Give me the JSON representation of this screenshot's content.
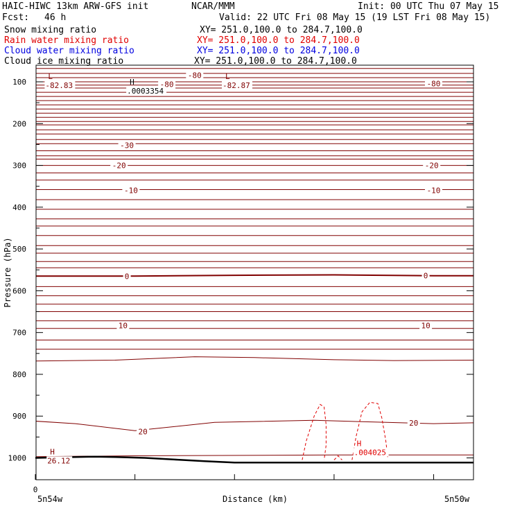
{
  "header": {
    "title": "HAIC-HIWC 13km ARW-GFS init",
    "org": "NCAR/MMM",
    "init": "Init: 00 UTC Thu 07 May 15",
    "fcst_label": "Fcst:",
    "fcst_value": "46 h",
    "valid": "Valid: 22 UTC Fri 08 May 15 (19 LST Fri 08 May 15)"
  },
  "fields": [
    {
      "name": "Snow mixing ratio",
      "xy": "XY= 251.0,100.0 to 284.7,100.0",
      "color": "#000000"
    },
    {
      "name": "Rain water mixing ratio",
      "xy": "XY= 251.0,100.0 to 284.7,100.0",
      "color": "#e00000"
    },
    {
      "name": "Cloud water mixing ratio",
      "xy": "XY= 251.0,100.0 to 284.7,100.0",
      "color": "#0000e0"
    },
    {
      "name": "Cloud ice mixing ratio",
      "xy": "XY= 251.0,100.0 to 284.7,100.0",
      "color": "#000000"
    }
  ],
  "chart_data": {
    "type": "line",
    "xlabel": "Distance (km)",
    "ylabel": "Pressure (hPa)",
    "xlim": [
      0,
      220
    ],
    "x_ticks": [
      0,
      50,
      100,
      150,
      200
    ],
    "x_tick_labels": [
      "0"
    ],
    "x_left_label": "5n54w",
    "x_right_label": "5n50w",
    "ylim": [
      1040,
      65
    ],
    "y_ticks": [
      100,
      200,
      300,
      400,
      500,
      600,
      700,
      800,
      900,
      1000
    ],
    "temperature_contours": [
      {
        "pressures": [
          68,
          80,
          90,
          100,
          108,
          115,
          125,
          135,
          145,
          155,
          165,
          175,
          185,
          195,
          203,
          215,
          225,
          238,
          248,
          265,
          277,
          285,
          300,
          318,
          335,
          358,
          382,
          405,
          428,
          445,
          468,
          492,
          510,
          530,
          545,
          590,
          612,
          632,
          650,
          672,
          690,
          718,
          740
        ]
      },
      {
        "x": [
          0,
          40,
          80,
          110,
          150,
          180,
          220
        ],
        "p": [
          768,
          766,
          758,
          760,
          765,
          767,
          766
        ]
      },
      {
        "x": [
          0,
          20,
          50,
          90,
          140,
          200,
          220
        ],
        "p": [
          912,
          918,
          935,
          915,
          910,
          918,
          916
        ]
      },
      {
        "x": [
          0,
          50,
          150,
          220
        ],
        "p": [
          997,
          995,
          993,
          993
        ]
      }
    ],
    "freezing_level": {
      "x": [
        0,
        50,
        100,
        150,
        200,
        220
      ],
      "p": [
        565,
        565,
        563,
        562,
        564,
        564
      ]
    },
    "contour_labels": [
      {
        "text": "-80",
        "x": 80,
        "p": 84
      },
      {
        "text": "-80",
        "x": 66,
        "p": 106
      },
      {
        "text": "-80",
        "x": 200,
        "p": 104
      },
      {
        "text": "-30",
        "x": 46,
        "p": 252
      },
      {
        "text": "-20",
        "x": 42,
        "p": 300
      },
      {
        "text": "-20",
        "x": 199,
        "p": 300
      },
      {
        "text": "-10",
        "x": 48,
        "p": 360
      },
      {
        "text": "-10",
        "x": 200,
        "p": 360
      },
      {
        "text": "0",
        "x": 46,
        "p": 565
      },
      {
        "text": "0",
        "x": 196,
        "p": 564
      },
      {
        "text": "10",
        "x": 44,
        "p": 683
      },
      {
        "text": "10",
        "x": 196,
        "p": 683
      },
      {
        "text": "20",
        "x": 54,
        "p": 937
      },
      {
        "text": "20",
        "x": 190,
        "p": 916
      }
    ],
    "highs_lows": [
      {
        "mark": "L",
        "value": "-82.83",
        "x": 5,
        "p": 100
      },
      {
        "mark": "L",
        "value": "-82.87",
        "x": 94,
        "p": 100
      },
      {
        "mark": "H",
        "value": ".0003354",
        "x": 46,
        "p": 113
      },
      {
        "mark": "H",
        "value": "26.12",
        "x": 6,
        "p": 998
      },
      {
        "mark": "H",
        "value": ".004025",
        "x": 160,
        "p": 978
      }
    ],
    "rain_contours": [
      {
        "x": [
          134,
          136,
          140,
          143,
          145,
          146,
          146,
          145
        ],
        "p": [
          1005,
          960,
          900,
          872,
          878,
          920,
          970,
          1005
        ]
      },
      {
        "x": [
          159,
          161,
          164,
          168,
          172,
          174,
          176,
          177
        ],
        "p": [
          1005,
          950,
          890,
          867,
          870,
          905,
          960,
          1002
        ]
      },
      {
        "x": [
          150,
          152,
          154
        ],
        "p": [
          1005,
          995,
          1005
        ]
      }
    ],
    "terrain": {
      "x": [
        0,
        10,
        20,
        30,
        40,
        55,
        70,
        85,
        100,
        130,
        160,
        190,
        220
      ],
      "p": [
        1000,
        999,
        998,
        997,
        998,
        1000,
        1004,
        1008,
        1011,
        1011,
        1011,
        1011,
        1011
      ]
    },
    "colors": {
      "temperature": "#800000",
      "rain": "#e00000",
      "terrain": "#000000",
      "frame": "#000000"
    }
  }
}
